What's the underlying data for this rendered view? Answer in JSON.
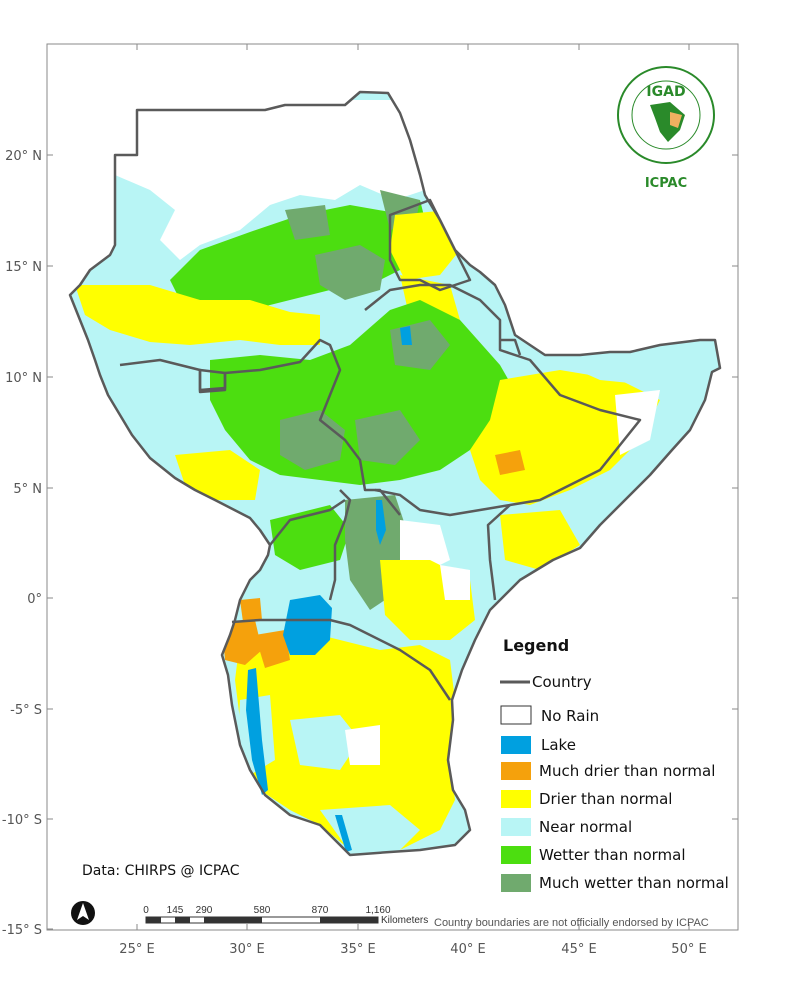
{
  "axes": {
    "lat_labels": [
      "20° N",
      "15° N",
      "10° N",
      "5° N",
      "0°",
      "-5° S",
      "-10° S",
      "-15° S"
    ],
    "lon_labels": [
      "25° E",
      "30° E",
      "35° E",
      "40° E",
      "45° E",
      "50° E"
    ]
  },
  "legend": {
    "title": "Legend",
    "country_label": "Country",
    "country_color": "#5a5a5a",
    "items": [
      {
        "label": "No Rain",
        "color": "#ffffff"
      },
      {
        "label": "Lake",
        "color": "#00a0e0"
      },
      {
        "label": "Much drier than normal",
        "color": "#f5a10c"
      },
      {
        "label": "Drier than normal",
        "color": "#ffff00"
      },
      {
        "label": "Near normal",
        "color": "#b8f5f5"
      },
      {
        "label": "Wetter than normal",
        "color": "#4cde10"
      },
      {
        "label": "Much wetter than normal",
        "color": "#70aa6e"
      }
    ]
  },
  "logo": {
    "org_short": "IGAD",
    "center_name": "ICPAC",
    "color": "#2a8a2a"
  },
  "data_source": "Data: CHIRPS @ ICPAC",
  "scale_bar": {
    "ticks": [
      "0",
      "145",
      "290",
      "580",
      "870",
      "1,160"
    ],
    "unit": "Kilometers"
  },
  "disclaimer": "Country boundaries are not officially endorsed by ICPAC"
}
